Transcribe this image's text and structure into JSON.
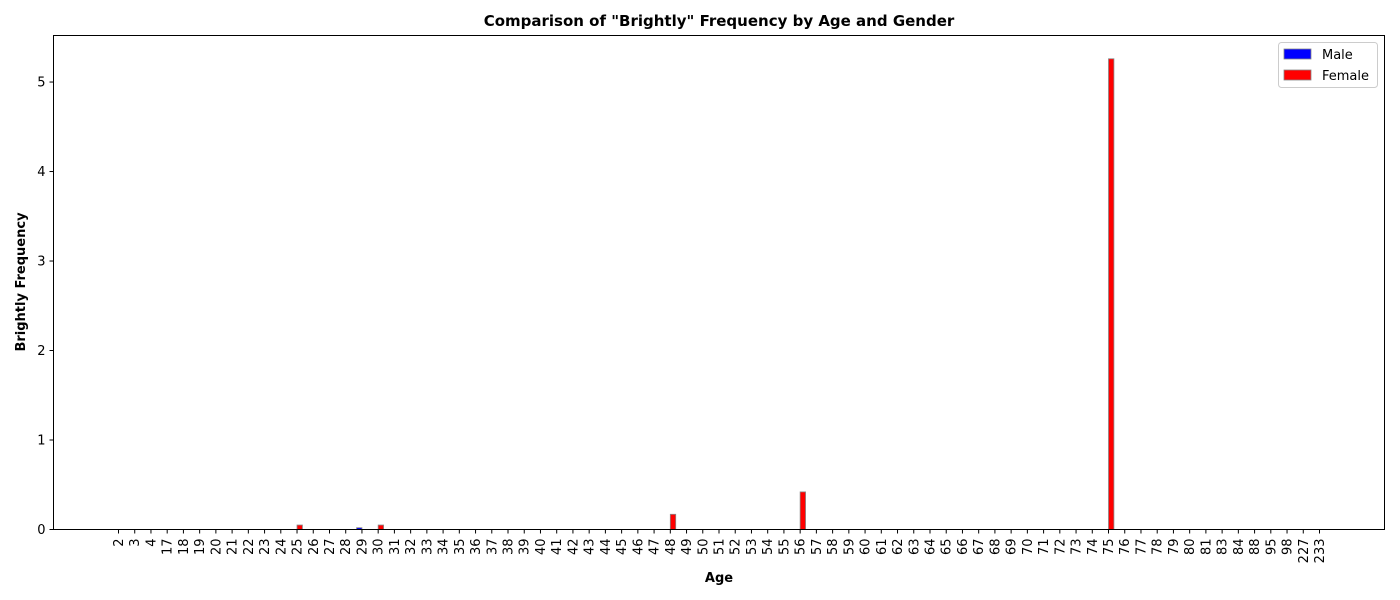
{
  "chart_data": {
    "type": "bar",
    "title": "Comparison of \"Brightly\" Frequency by Age and Gender",
    "xlabel": "Age",
    "ylabel": "Brightly Frequency",
    "categories": [
      "2",
      "3",
      "4",
      "17",
      "18",
      "19",
      "20",
      "21",
      "22",
      "23",
      "24",
      "25",
      "26",
      "27",
      "28",
      "29",
      "30",
      "31",
      "32",
      "33",
      "34",
      "35",
      "36",
      "37",
      "38",
      "39",
      "40",
      "41",
      "42",
      "43",
      "44",
      "45",
      "46",
      "47",
      "48",
      "49",
      "50",
      "51",
      "52",
      "53",
      "54",
      "55",
      "56",
      "57",
      "58",
      "59",
      "60",
      "61",
      "62",
      "63",
      "64",
      "65",
      "66",
      "67",
      "68",
      "69",
      "70",
      "71",
      "72",
      "73",
      "74",
      "75",
      "76",
      "77",
      "78",
      "79",
      "80",
      "81",
      "83",
      "84",
      "88",
      "95",
      "98",
      "227",
      "233"
    ],
    "series": [
      {
        "name": "Male",
        "color": "#0000ff",
        "values": [
          0,
          0,
          0,
          0,
          0,
          0,
          0,
          0,
          0,
          0,
          0,
          0,
          0,
          0,
          0,
          0.02,
          0,
          0,
          0,
          0,
          0,
          0,
          0,
          0,
          0,
          0,
          0,
          0,
          0,
          0,
          0,
          0,
          0,
          0,
          0,
          0,
          0,
          0,
          0,
          0,
          0,
          0,
          0,
          0,
          0,
          0,
          0,
          0,
          0,
          0,
          0,
          0,
          0,
          0,
          0,
          0,
          0,
          0,
          0,
          0,
          0,
          0,
          0,
          0,
          0,
          0,
          0,
          0,
          0,
          0,
          0,
          0,
          0,
          0,
          0
        ]
      },
      {
        "name": "Female",
        "color": "#ff0000",
        "values": [
          0,
          0,
          0,
          0,
          0,
          0,
          0,
          0,
          0,
          0,
          0,
          0.05,
          0,
          0,
          0,
          0,
          0.05,
          0,
          0,
          0,
          0,
          0,
          0,
          0,
          0,
          0,
          0,
          0,
          0,
          0,
          0,
          0,
          0,
          0,
          0.17,
          0,
          0,
          0,
          0,
          0,
          0,
          0,
          0.42,
          0,
          0,
          0,
          0,
          0,
          0,
          0,
          0,
          0,
          0,
          0,
          0,
          0,
          0,
          0,
          0,
          0,
          0,
          5.26,
          0,
          0,
          0,
          0,
          0,
          0,
          0,
          0,
          0,
          0,
          0,
          0,
          0
        ]
      }
    ],
    "ylim": [
      0,
      5.52
    ],
    "yticks": [
      0,
      1,
      2,
      3,
      4,
      5
    ],
    "legend": "top-right",
    "grid": false
  }
}
